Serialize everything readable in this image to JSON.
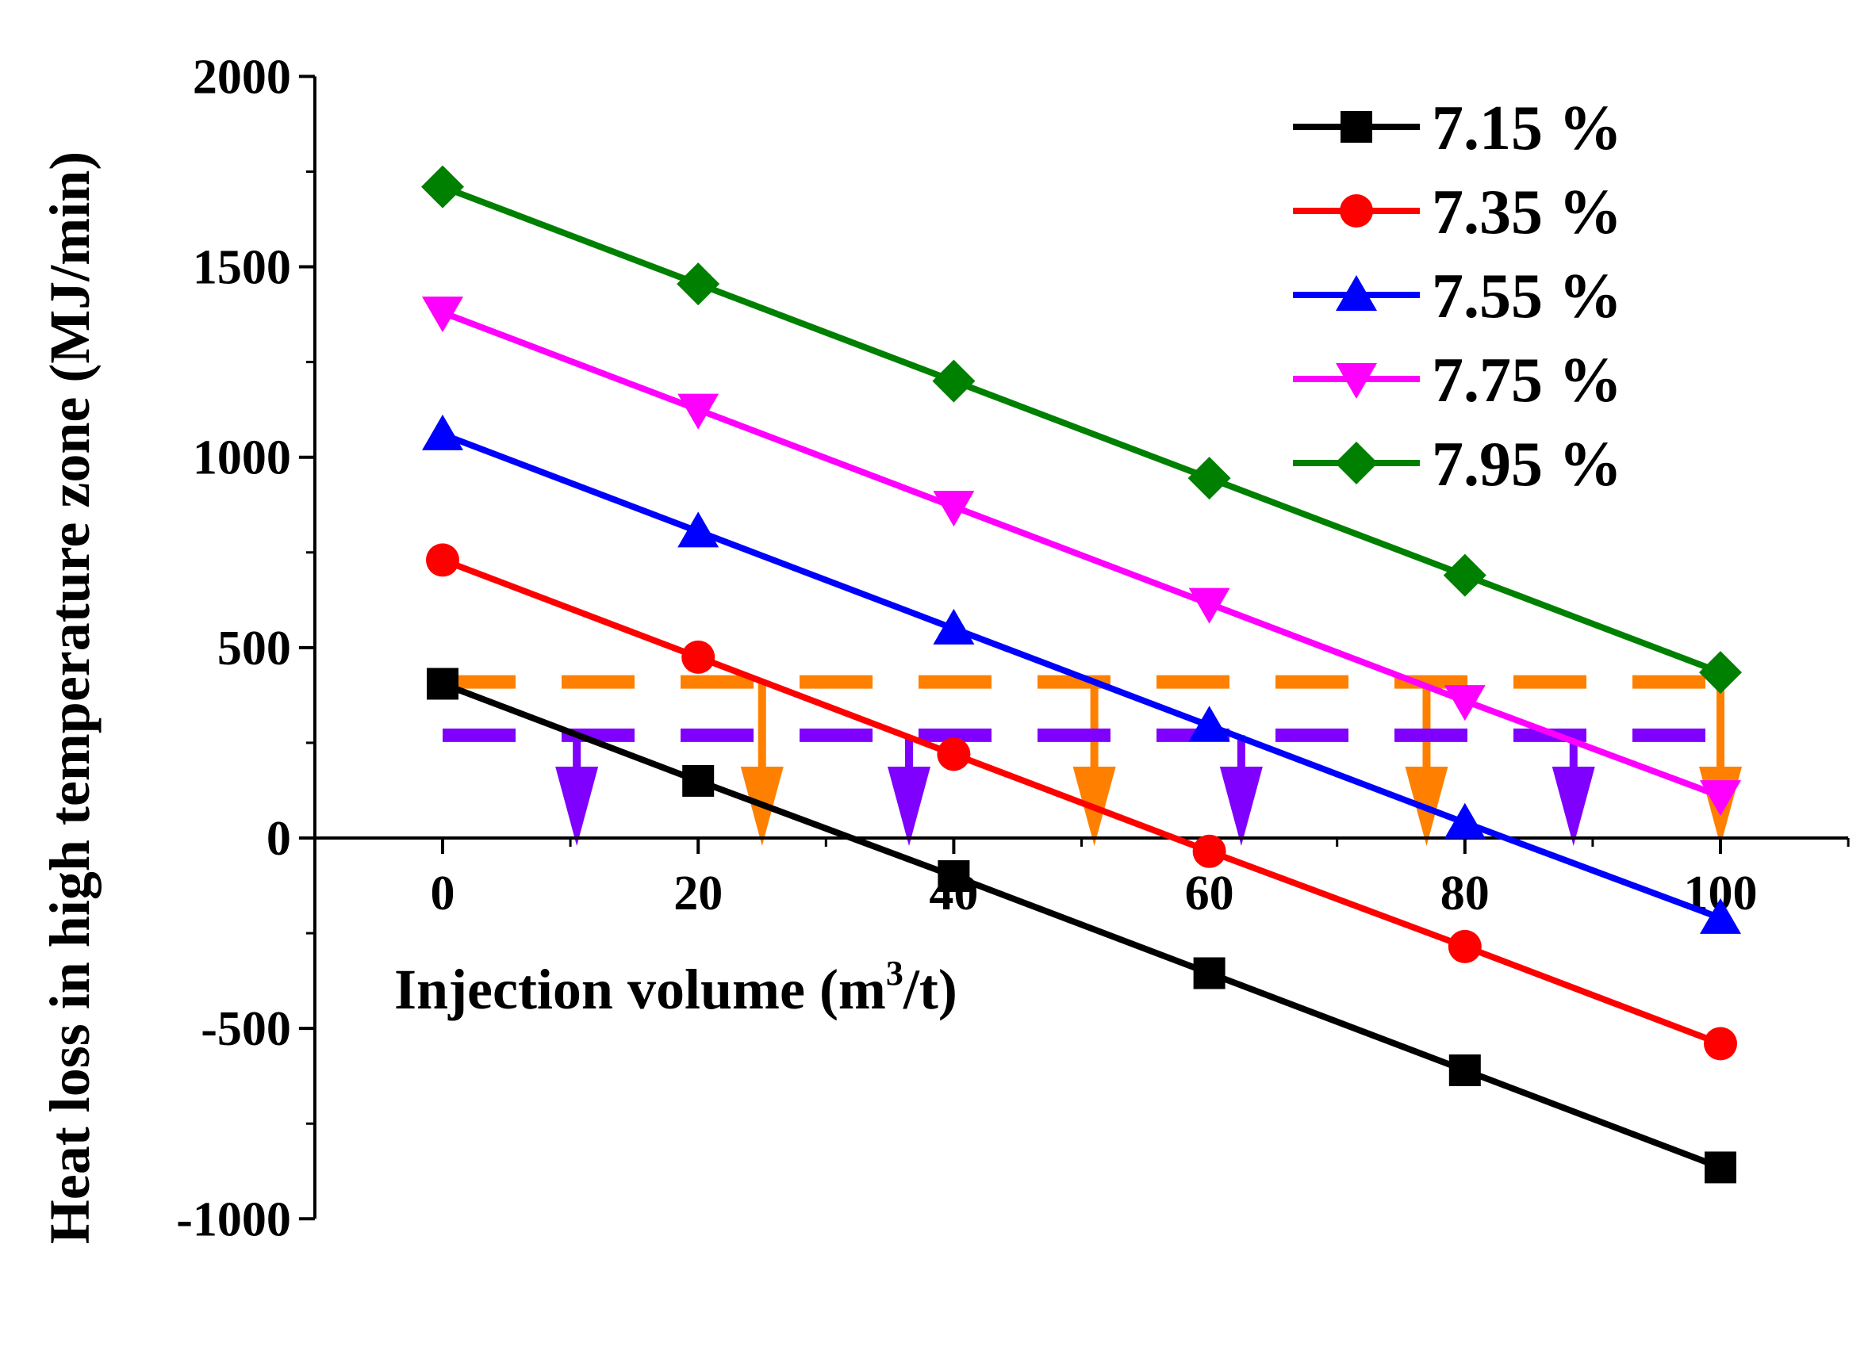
{
  "chart_data": {
    "type": "line",
    "title": "",
    "xlabel_main": "Injection volume (m",
    "xlabel_sup": "3",
    "xlabel_end": "/t)",
    "ylabel": "Heat loss in high temperature zone (MJ/min)",
    "xlim": [
      -10,
      110
    ],
    "ylim": [
      -1000,
      2000
    ],
    "x_ticks": [
      0,
      20,
      40,
      60,
      80,
      100
    ],
    "y_ticks": [
      -1000,
      -500,
      0,
      500,
      1000,
      1500,
      2000
    ],
    "x_tick_labels": [
      "0",
      "20",
      "40",
      "60",
      "80",
      "100"
    ],
    "y_tick_labels": [
      "-1000",
      "-500",
      "0",
      "500",
      "1000",
      "1500",
      "2000"
    ],
    "x": [
      0,
      20,
      40,
      60,
      80,
      100
    ],
    "series": [
      {
        "name": "7.15 %",
        "color": "#000000",
        "marker": "square",
        "values": [
          405,
          150,
          -100,
          -355,
          -610,
          -865
        ]
      },
      {
        "name": "7.35 %",
        "color": "#ff0000",
        "marker": "circle",
        "values": [
          730,
          475,
          220,
          -35,
          -285,
          -540
        ]
      },
      {
        "name": "7.55 %",
        "color": "#0000ff",
        "marker": "triangle-up",
        "values": [
          1060,
          805,
          550,
          295,
          40,
          -210
        ]
      },
      {
        "name": "7.75 %",
        "color": "#ff00ff",
        "marker": "triangle-down",
        "values": [
          1380,
          1125,
          870,
          615,
          360,
          110
        ]
      },
      {
        "name": "7.95 %",
        "color": "#008000",
        "marker": "diamond",
        "values": [
          1710,
          1455,
          1200,
          945,
          690,
          435
        ]
      }
    ],
    "reference_lines": [
      {
        "name": "orange-threshold",
        "color": "#ff8000",
        "y": 410,
        "x_start": 0,
        "x_end": 100,
        "arrows_x": [
          25,
          51,
          77,
          100
        ]
      },
      {
        "name": "purple-threshold",
        "color": "#8000ff",
        "y": 270,
        "x_start": 0,
        "x_end": 100,
        "arrows_x": [
          10.5,
          36.5,
          62.5,
          88.5
        ]
      }
    ],
    "legend_position": "top-right",
    "grid": false
  }
}
